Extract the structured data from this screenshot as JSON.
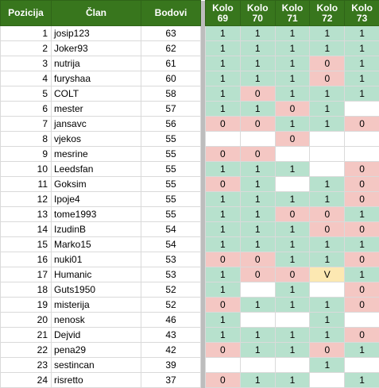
{
  "header": {
    "pozicija": "Pozicija",
    "clan": "Član",
    "bodovi": "Bodovi",
    "kola": [
      {
        "word": "Kolo",
        "num": "69"
      },
      {
        "word": "Kolo",
        "num": "70"
      },
      {
        "word": "Kolo",
        "num": "71"
      },
      {
        "word": "Kolo",
        "num": "72"
      },
      {
        "word": "Kolo",
        "num": "73"
      }
    ]
  },
  "rows": [
    {
      "pos": "1",
      "name": "josip123",
      "points": "63",
      "k": [
        "1",
        "1",
        "1",
        "1",
        "1"
      ]
    },
    {
      "pos": "2",
      "name": "Joker93",
      "points": "62",
      "k": [
        "1",
        "1",
        "1",
        "1",
        "1"
      ]
    },
    {
      "pos": "3",
      "name": "nutrija",
      "points": "61",
      "k": [
        "1",
        "1",
        "1",
        "0",
        "1"
      ]
    },
    {
      "pos": "4",
      "name": "furyshaa",
      "points": "60",
      "k": [
        "1",
        "1",
        "1",
        "0",
        "1"
      ]
    },
    {
      "pos": "5",
      "name": "COLT",
      "points": "58",
      "k": [
        "1",
        "0",
        "1",
        "1",
        "1"
      ]
    },
    {
      "pos": "6",
      "name": "mester",
      "points": "57",
      "k": [
        "1",
        "1",
        "0",
        "1",
        ""
      ]
    },
    {
      "pos": "7",
      "name": "jansavc",
      "points": "56",
      "k": [
        "0",
        "0",
        "1",
        "1",
        "0"
      ]
    },
    {
      "pos": "8",
      "name": "vjekos",
      "points": "55",
      "k": [
        "",
        "",
        "0",
        "",
        ""
      ]
    },
    {
      "pos": "9",
      "name": "mesrine",
      "points": "55",
      "k": [
        "0",
        "0",
        "",
        "",
        ""
      ]
    },
    {
      "pos": "10",
      "name": "Leedsfan",
      "points": "55",
      "k": [
        "1",
        "1",
        "1",
        "",
        "0"
      ]
    },
    {
      "pos": "11",
      "name": "Goksim",
      "points": "55",
      "k": [
        "0",
        "1",
        "",
        "1",
        "0"
      ]
    },
    {
      "pos": "12",
      "name": "Ipoje4",
      "points": "55",
      "k": [
        "1",
        "1",
        "1",
        "1",
        "0"
      ]
    },
    {
      "pos": "13",
      "name": "tome1993",
      "points": "55",
      "k": [
        "1",
        "1",
        "0",
        "0",
        "1"
      ]
    },
    {
      "pos": "14",
      "name": "IzudinB",
      "points": "54",
      "k": [
        "1",
        "1",
        "1",
        "0",
        "0"
      ]
    },
    {
      "pos": "15",
      "name": "Marko15",
      "points": "54",
      "k": [
        "1",
        "1",
        "1",
        "1",
        "1"
      ]
    },
    {
      "pos": "16",
      "name": "nuki01",
      "points": "53",
      "k": [
        "0",
        "0",
        "1",
        "1",
        "0"
      ]
    },
    {
      "pos": "17",
      "name": "Humanic",
      "points": "53",
      "k": [
        "1",
        "0",
        "0",
        "V",
        "1"
      ]
    },
    {
      "pos": "18",
      "name": "Guts1950",
      "points": "52",
      "k": [
        "1",
        "",
        "1",
        "",
        "0"
      ]
    },
    {
      "pos": "19",
      "name": "misterija",
      "points": "52",
      "k": [
        "0",
        "1",
        "1",
        "1",
        "0"
      ]
    },
    {
      "pos": "20",
      "name": "nenosk",
      "points": "46",
      "k": [
        "1",
        "",
        "",
        "1",
        ""
      ]
    },
    {
      "pos": "21",
      "name": "Dejvid",
      "points": "43",
      "k": [
        "1",
        "1",
        "1",
        "1",
        "0"
      ]
    },
    {
      "pos": "22",
      "name": "pena29",
      "points": "42",
      "k": [
        "0",
        "1",
        "1",
        "0",
        "1"
      ]
    },
    {
      "pos": "23",
      "name": "sestincan",
      "points": "39",
      "k": [
        "",
        "",
        "",
        "1",
        ""
      ]
    },
    {
      "pos": "24",
      "name": "risretto",
      "points": "37",
      "k": [
        "0",
        "1",
        "1",
        "",
        "1"
      ]
    }
  ],
  "colors": {
    "header_bg": "#38761d",
    "value_1": "#b7e1cd",
    "value_0": "#f4c7c3",
    "value_V": "#fce8b2",
    "separator": "#bdbdbd"
  }
}
